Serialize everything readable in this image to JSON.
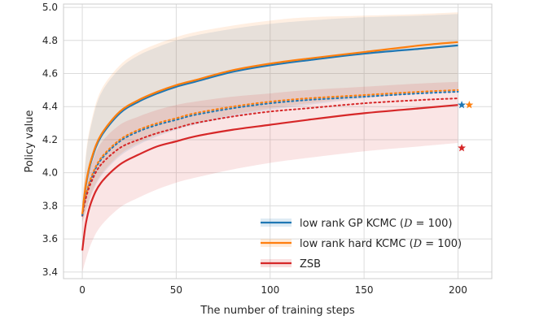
{
  "chart_data": {
    "type": "line",
    "title": "",
    "xlabel": "The number of training steps",
    "ylabel": "Policy value",
    "xlim": [
      -10,
      218
    ],
    "ylim": [
      3.36,
      5.02
    ],
    "xticks": [
      0,
      50,
      100,
      150,
      200
    ],
    "yticks": [
      3.4,
      3.6,
      3.8,
      4.0,
      4.2,
      4.4,
      4.6,
      4.8,
      5.0
    ],
    "grid": true,
    "legend_position": "bottom-right",
    "x": [
      0,
      2,
      5,
      10,
      20,
      30,
      40,
      50,
      60,
      80,
      100,
      120,
      150,
      180,
      200
    ],
    "series": [
      {
        "name": "low rank GP KCMC",
        "label_math": "D = 100",
        "color": "#1f77b4",
        "style": "solid",
        "values": [
          3.74,
          3.93,
          4.08,
          4.22,
          4.36,
          4.43,
          4.48,
          4.52,
          4.55,
          4.61,
          4.65,
          4.68,
          4.72,
          4.75,
          4.77
        ],
        "band_upper": [
          3.78,
          4.1,
          4.3,
          4.48,
          4.63,
          4.71,
          4.76,
          4.8,
          4.83,
          4.87,
          4.9,
          4.92,
          4.94,
          4.95,
          4.96
        ],
        "band_lower": [
          3.7,
          3.77,
          3.87,
          3.98,
          4.1,
          4.17,
          4.22,
          4.26,
          4.29,
          4.34,
          4.38,
          4.41,
          4.45,
          4.48,
          4.49
        ]
      },
      {
        "name": "low rank hard KCMC",
        "label_math": "D = 100",
        "color": "#ff7f0e",
        "style": "solid",
        "values": [
          3.75,
          3.94,
          4.09,
          4.23,
          4.37,
          4.44,
          4.49,
          4.53,
          4.56,
          4.62,
          4.66,
          4.69,
          4.73,
          4.77,
          4.79
        ],
        "band_upper": [
          3.8,
          4.12,
          4.32,
          4.5,
          4.65,
          4.73,
          4.78,
          4.82,
          4.85,
          4.89,
          4.92,
          4.94,
          4.95,
          4.96,
          4.97
        ],
        "band_lower": [
          3.71,
          3.78,
          3.88,
          3.99,
          4.11,
          4.18,
          4.23,
          4.27,
          4.3,
          4.35,
          4.39,
          4.42,
          4.46,
          4.49,
          4.5
        ]
      },
      {
        "name": "ZSB",
        "color": "#d62728",
        "style": "solid",
        "values": [
          3.53,
          3.7,
          3.83,
          3.94,
          4.05,
          4.11,
          4.16,
          4.19,
          4.22,
          4.26,
          4.29,
          4.32,
          4.36,
          4.39,
          4.41
        ],
        "band_upper": [
          3.72,
          3.92,
          4.05,
          4.18,
          4.29,
          4.34,
          4.38,
          4.41,
          4.43,
          4.46,
          4.48,
          4.5,
          4.52,
          4.54,
          4.55
        ],
        "band_lower": [
          3.4,
          3.48,
          3.58,
          3.68,
          3.79,
          3.85,
          3.9,
          3.94,
          3.97,
          4.02,
          4.06,
          4.09,
          4.13,
          4.16,
          4.18
        ]
      }
    ],
    "dotted_series": [
      {
        "color": "#1f77b4",
        "values": [
          3.74,
          3.86,
          3.97,
          4.08,
          4.19,
          4.25,
          4.29,
          4.32,
          4.35,
          4.39,
          4.42,
          4.44,
          4.46,
          4.48,
          4.49
        ]
      },
      {
        "color": "#ff7f0e",
        "values": [
          3.75,
          3.87,
          3.98,
          4.09,
          4.2,
          4.26,
          4.3,
          4.33,
          4.36,
          4.4,
          4.43,
          4.45,
          4.47,
          4.49,
          4.5
        ]
      },
      {
        "color": "#d62728",
        "values": [
          3.74,
          3.85,
          3.95,
          4.05,
          4.15,
          4.2,
          4.24,
          4.27,
          4.3,
          4.34,
          4.37,
          4.39,
          4.42,
          4.44,
          4.45
        ]
      }
    ],
    "markers": [
      {
        "color": "#1f77b4",
        "x": 202,
        "y": 4.41
      },
      {
        "color": "#ff7f0e",
        "x": 206,
        "y": 4.41
      },
      {
        "color": "#d62728",
        "x": 202,
        "y": 4.15
      }
    ]
  }
}
